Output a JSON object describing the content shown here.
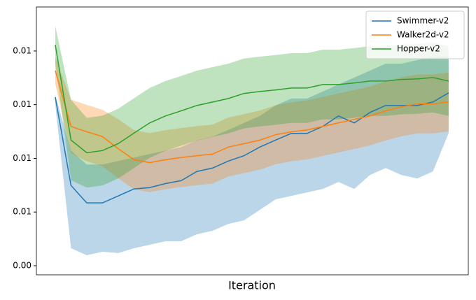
{
  "chart_data": {
    "type": "line",
    "x_label": "Iteration",
    "x": [
      0,
      4,
      8,
      12,
      16,
      20,
      24,
      28,
      32,
      36,
      40,
      44,
      48,
      52,
      56,
      60,
      64,
      68,
      72,
      76,
      80,
      84,
      88,
      92,
      96,
      100
    ],
    "xlim": [
      -4.8,
      105
    ],
    "ylim": [
      0.00366,
      0.01364
    ],
    "yticks": [
      {
        "value": 0.004,
        "label": "0.00"
      },
      {
        "value": 0.006,
        "label": "0.01"
      },
      {
        "value": 0.008,
        "label": "0.01"
      },
      {
        "value": 0.01,
        "label": "0.01"
      },
      {
        "value": 0.012,
        "label": "0.01"
      }
    ],
    "legend": "upper right",
    "series": [
      {
        "name": "Swimmer-v2",
        "color": "#1f77b4",
        "values": [
          0.01028,
          0.00699,
          0.00634,
          0.00634,
          0.0066,
          0.00686,
          0.00691,
          0.00706,
          0.00717,
          0.00751,
          0.00764,
          0.0079,
          0.0081,
          0.00842,
          0.00868,
          0.00893,
          0.00893,
          0.00919,
          0.00958,
          0.00932,
          0.00971,
          0.00997,
          0.00997,
          0.00997,
          0.0101,
          0.01044
        ],
        "lower": [
          0.01,
          0.00465,
          0.00439,
          0.00452,
          0.00447,
          0.00465,
          0.00478,
          0.00491,
          0.00491,
          0.00517,
          0.0053,
          0.00556,
          0.00569,
          0.00608,
          0.00647,
          0.0066,
          0.00673,
          0.00686,
          0.00712,
          0.00686,
          0.00738,
          0.00764,
          0.00738,
          0.00725,
          0.00751,
          0.00894
        ],
        "upper": [
          0.01036,
          0.00829,
          0.00777,
          0.00777,
          0.0079,
          0.00803,
          0.00816,
          0.00829,
          0.00842,
          0.00868,
          0.00881,
          0.00906,
          0.00932,
          0.00958,
          0.00997,
          0.01023,
          0.01023,
          0.01049,
          0.01075,
          0.01101,
          0.01127,
          0.01153,
          0.01153,
          0.01166,
          0.01179,
          0.01179
        ]
      },
      {
        "name": "Walker2d-v2",
        "color": "#ff7f0e",
        "values": [
          0.01127,
          0.00919,
          0.00899,
          0.00881,
          0.00836,
          0.00795,
          0.00784,
          0.00795,
          0.00803,
          0.0081,
          0.00816,
          0.00842,
          0.00855,
          0.00868,
          0.00888,
          0.00899,
          0.00906,
          0.00919,
          0.00932,
          0.00945,
          0.00958,
          0.00977,
          0.00992,
          0.01003,
          0.01003,
          0.0101
        ],
        "lower": [
          0.01077,
          0.00819,
          0.00789,
          0.00771,
          0.00726,
          0.00685,
          0.00674,
          0.00685,
          0.00693,
          0.007,
          0.00706,
          0.00732,
          0.00745,
          0.00758,
          0.00778,
          0.00789,
          0.00796,
          0.00809,
          0.00822,
          0.00835,
          0.00848,
          0.00867,
          0.00882,
          0.00893,
          0.00893,
          0.009
        ],
        "upper": [
          0.01177,
          0.01019,
          0.00999,
          0.00981,
          0.00946,
          0.00905,
          0.00894,
          0.00905,
          0.00913,
          0.0092,
          0.00926,
          0.00952,
          0.00965,
          0.00978,
          0.00998,
          0.01009,
          0.01016,
          0.01029,
          0.01042,
          0.01055,
          0.01068,
          0.01087,
          0.01102,
          0.01113,
          0.01113,
          0.0112
        ]
      },
      {
        "name": "Hopper-v2",
        "color": "#2ca02c",
        "values": [
          0.01223,
          0.00868,
          0.00821,
          0.00829,
          0.00855,
          0.00894,
          0.00932,
          0.00958,
          0.00977,
          0.00997,
          0.0101,
          0.01023,
          0.01042,
          0.01049,
          0.01055,
          0.01062,
          0.01062,
          0.01075,
          0.01075,
          0.01081,
          0.01088,
          0.01088,
          0.01094,
          0.01096,
          0.01101,
          0.01088
        ],
        "lower": [
          0.01153,
          0.00718,
          0.00691,
          0.00699,
          0.00725,
          0.00764,
          0.00802,
          0.00828,
          0.00847,
          0.00867,
          0.0088,
          0.00893,
          0.00912,
          0.00919,
          0.00925,
          0.00932,
          0.00932,
          0.00945,
          0.00945,
          0.00951,
          0.00958,
          0.00958,
          0.00964,
          0.00966,
          0.00971,
          0.00958
        ],
        "upper": [
          0.01293,
          0.01018,
          0.00951,
          0.00959,
          0.00985,
          0.01024,
          0.01062,
          0.01088,
          0.01107,
          0.01127,
          0.0114,
          0.01153,
          0.01172,
          0.01179,
          0.01185,
          0.01192,
          0.01192,
          0.01205,
          0.01205,
          0.01211,
          0.01218,
          0.01218,
          0.01224,
          0.01226,
          0.01231,
          0.01218
        ]
      }
    ]
  }
}
